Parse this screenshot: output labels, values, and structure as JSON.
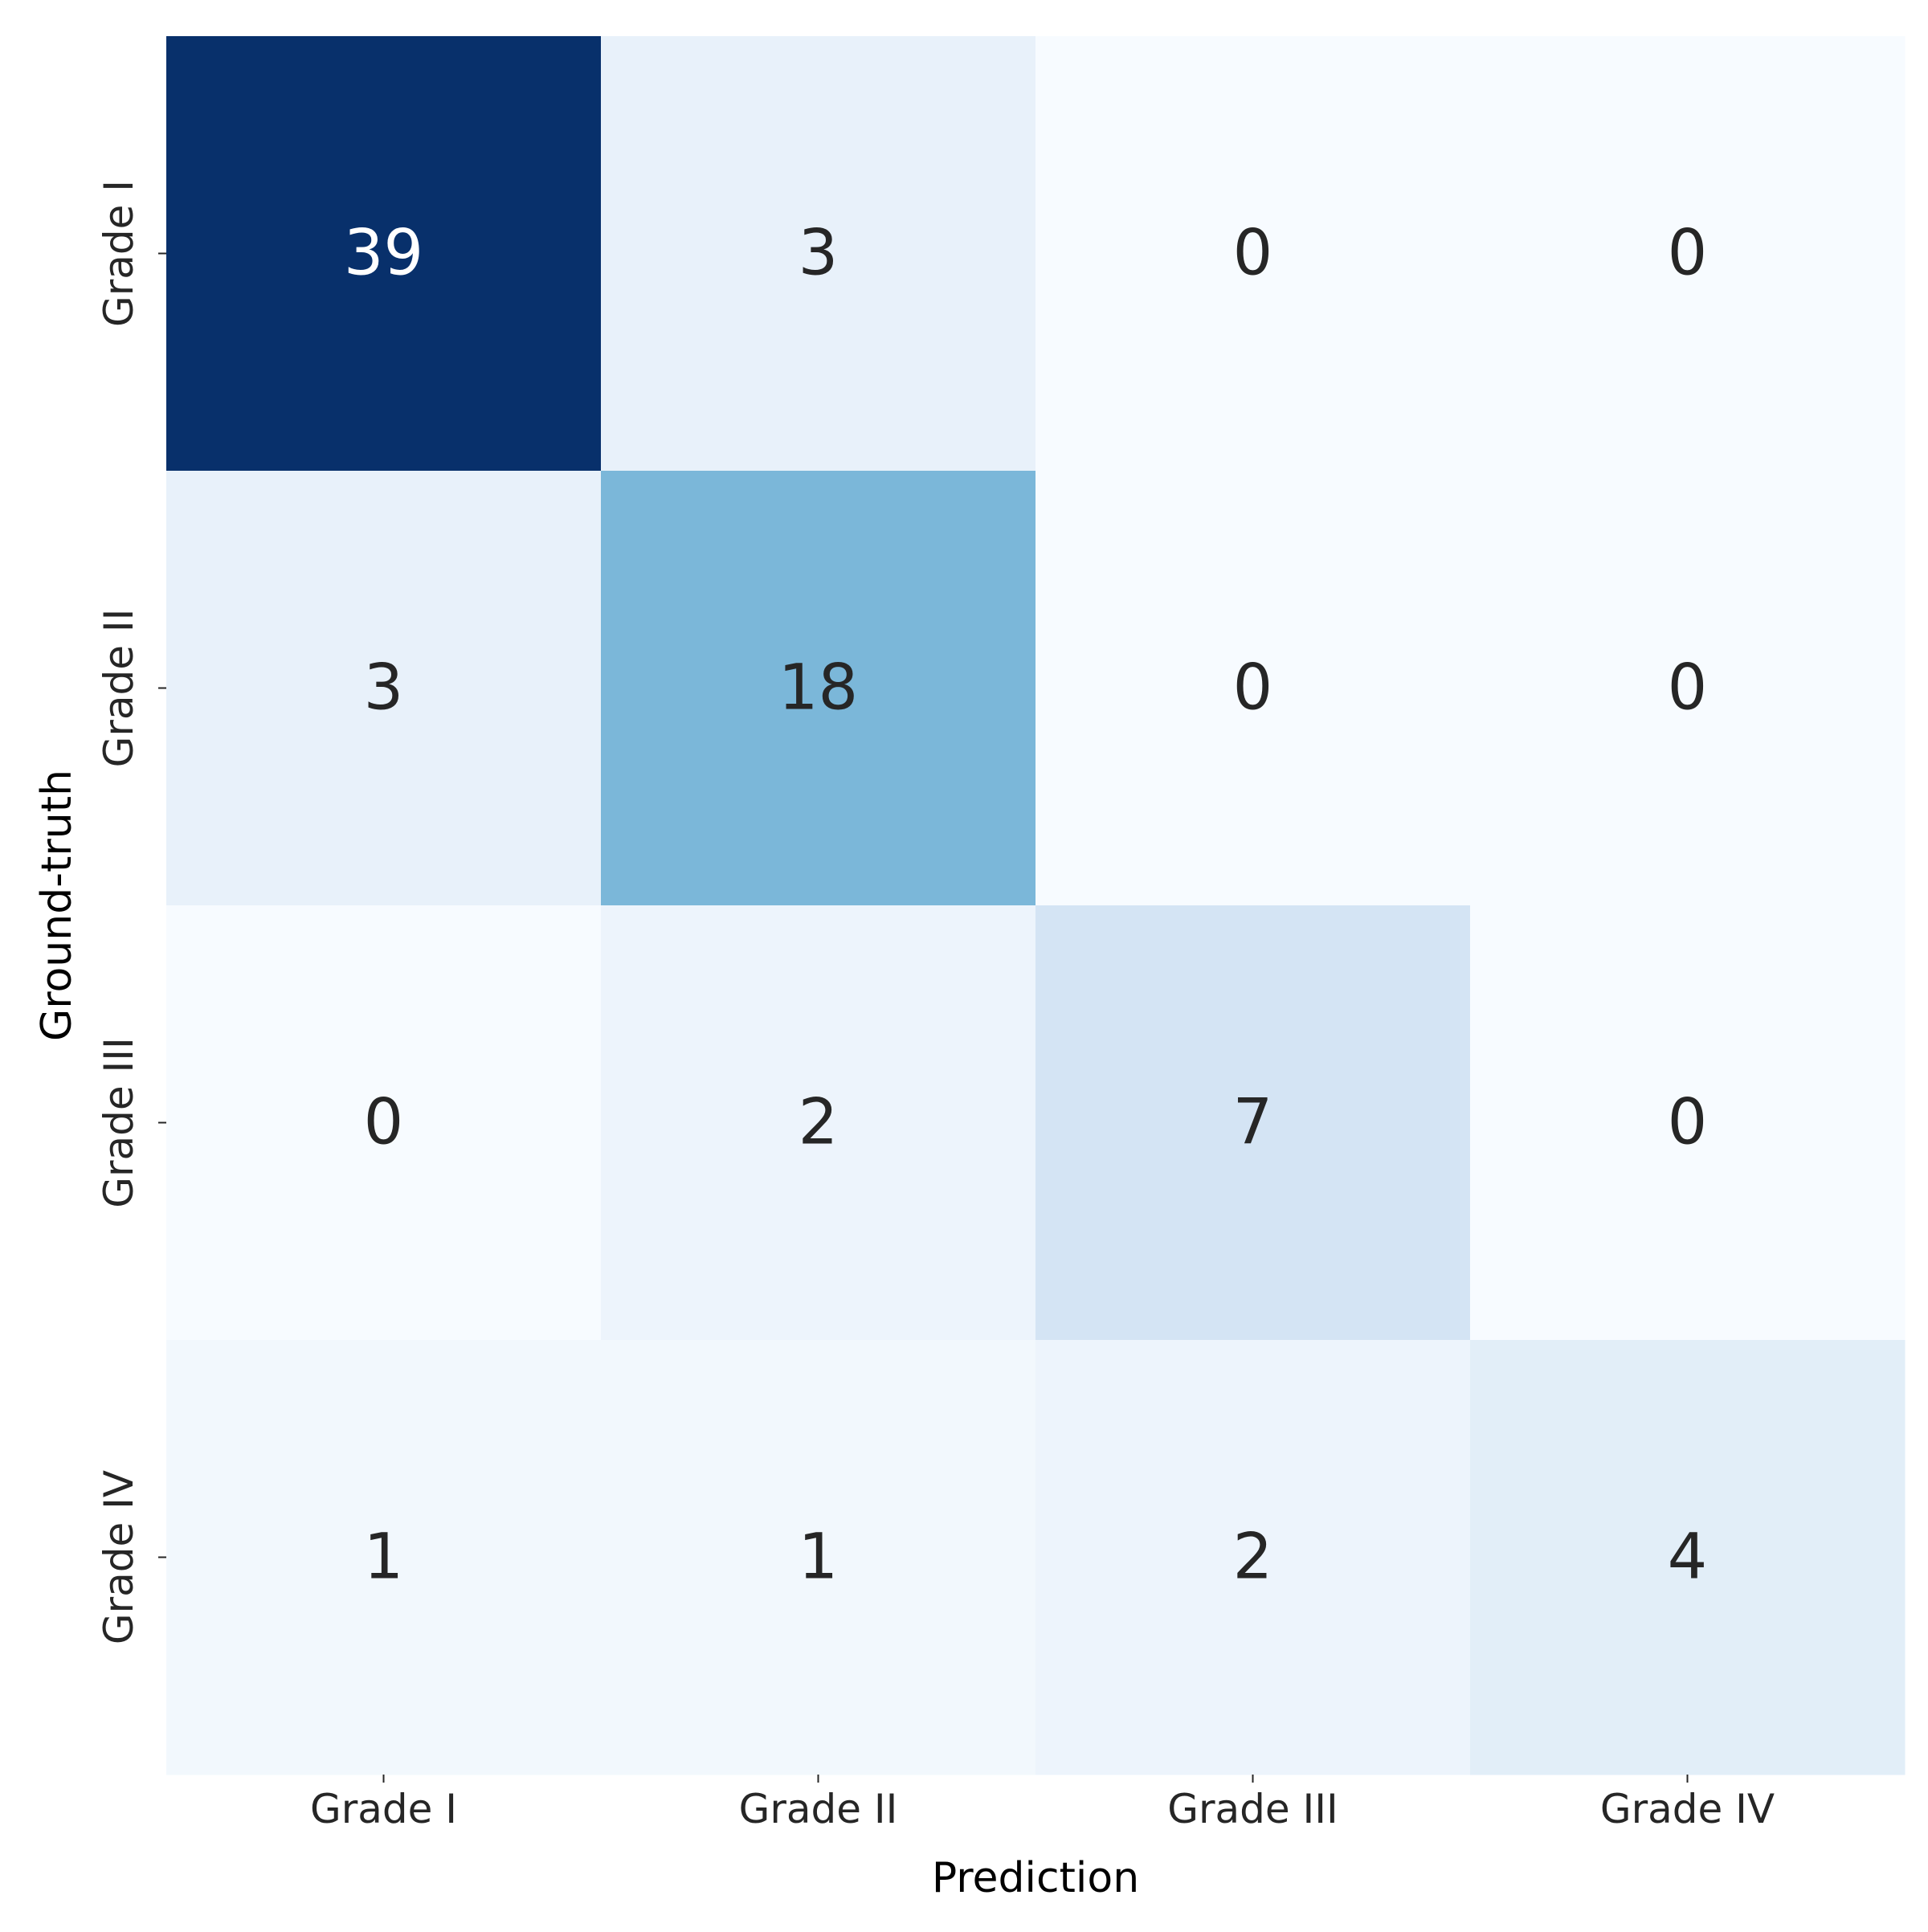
{
  "chart_data": {
    "type": "heatmap",
    "title": "",
    "xlabel": "Prediction",
    "ylabel": "Ground-truth",
    "x_categories": [
      "Grade I",
      "Grade II",
      "Grade III",
      "Grade IV"
    ],
    "y_categories": [
      "Grade I",
      "Grade II",
      "Grade III",
      "Grade IV"
    ],
    "values": [
      [
        39,
        3,
        0,
        0
      ],
      [
        3,
        18,
        0,
        0
      ],
      [
        0,
        2,
        7,
        0
      ],
      [
        1,
        1,
        2,
        4
      ]
    ],
    "colormap": "Blues",
    "value_range": [
      0,
      39
    ],
    "colorbar": false,
    "grid": false
  }
}
